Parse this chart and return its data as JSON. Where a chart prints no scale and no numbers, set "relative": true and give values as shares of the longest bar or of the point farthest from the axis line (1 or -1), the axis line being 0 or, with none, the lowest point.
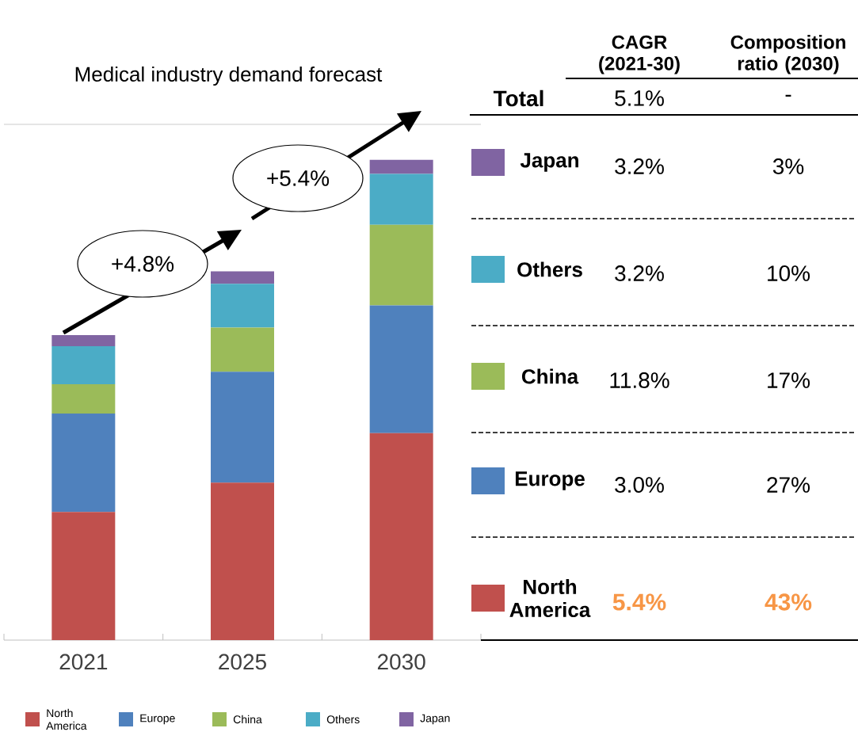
{
  "chart_data": {
    "type": "bar",
    "title": "Medical industry demand forecast",
    "stacked": true,
    "relative": true,
    "legend": "bottom",
    "categories": [
      "2021",
      "2025",
      "2030"
    ],
    "series": [
      {
        "name": "North America",
        "color": "#c0504d",
        "values": [
          0.267,
          0.328,
          0.431
        ]
      },
      {
        "name": "Europe",
        "color": "#4f81bd",
        "values": [
          0.205,
          0.231,
          0.266
        ]
      },
      {
        "name": "China",
        "color": "#9bbb59",
        "values": [
          0.061,
          0.092,
          0.168
        ]
      },
      {
        "name": "Others",
        "color": "#4bacc6",
        "values": [
          0.079,
          0.091,
          0.106
        ]
      },
      {
        "name": "Japan",
        "color": "#8064a2",
        "values": [
          0.023,
          0.026,
          0.029
        ]
      }
    ],
    "annotations": [
      "+4.8%",
      "+5.4%",
      "CAGR (2021-30)",
      "Composition ratio (2030)",
      "Total",
      "5.1%",
      "-",
      "3.2%",
      "3%",
      "3.2%",
      "10%",
      "11.8%",
      "17%",
      "3.0%",
      "27%",
      "5.4%",
      "43%"
    ]
  }
}
